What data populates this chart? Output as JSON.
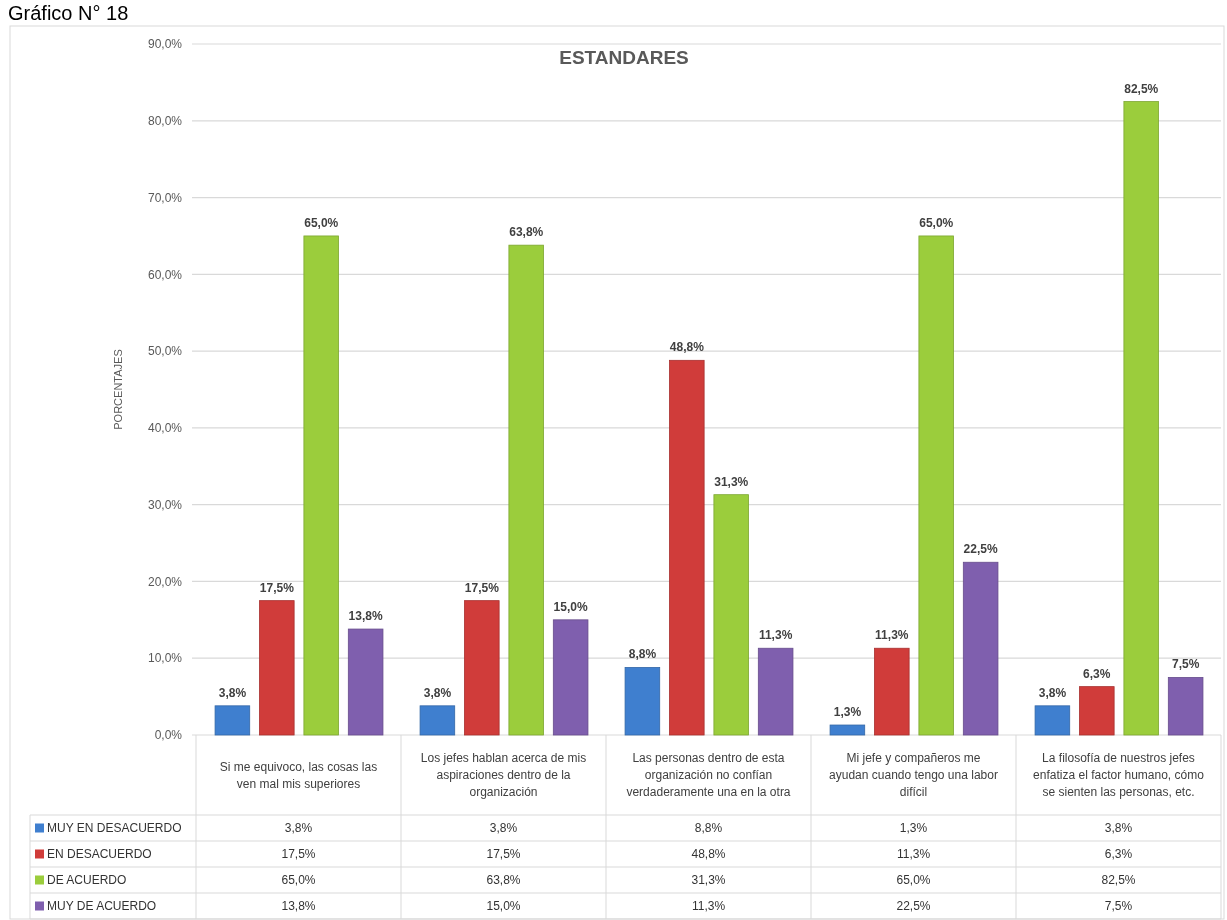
{
  "chart_data": {
    "type": "bar",
    "title": "ESTANDARES",
    "annotations": [
      "Gráfico N° 18"
    ],
    "ylabel": "PORCENTAJES",
    "categories": [
      "Si me equivoco, las cosas las ven mal mis superiores",
      "Los jefes hablan acerca de mis aspiraciones dentro de la organización",
      "Las personas dentro de esta organización no confían verdaderamente una en la otra",
      "Mi jefe y compañeros me ayudan cuando tengo una labor difícil",
      "La filosofía de nuestros jefes enfatiza el factor humano, cómo se sienten las personas, etc."
    ],
    "series": [
      {
        "name": "MUY EN DESACUERDO",
        "color": "#3f7fcf",
        "values": [
          3.8,
          3.8,
          8.8,
          1.3,
          3.8
        ],
        "value_labels": [
          "3,8%",
          "3,8%",
          "8,8%",
          "1,3%",
          "3,8%"
        ]
      },
      {
        "name": "EN DESACUERDO",
        "color": "#d03c3a",
        "values": [
          17.5,
          17.5,
          48.8,
          11.3,
          6.3
        ],
        "value_labels": [
          "17,5%",
          "17,5%",
          "48,8%",
          "11,3%",
          "6,3%"
        ]
      },
      {
        "name": "DE ACUERDO",
        "color": "#9bcd3c",
        "values": [
          65.0,
          63.8,
          31.3,
          65.0,
          82.5
        ],
        "value_labels": [
          "65,0%",
          "63,8%",
          "31,3%",
          "65,0%",
          "82,5%"
        ]
      },
      {
        "name": "MUY DE ACUERDO",
        "color": "#7f5fae",
        "values": [
          13.8,
          15.0,
          11.3,
          22.5,
          7.5
        ],
        "value_labels": [
          "13,8%",
          "15,0%",
          "11,3%",
          "22,5%",
          "7,5%"
        ]
      }
    ],
    "ylim": [
      0,
      90
    ],
    "yticks": [
      {
        "value": 0,
        "label": "0,0%"
      },
      {
        "value": 10,
        "label": "10,0%"
      },
      {
        "value": 20,
        "label": "20,0%"
      },
      {
        "value": 30,
        "label": "30,0%"
      },
      {
        "value": 40,
        "label": "40,0%"
      },
      {
        "value": 50,
        "label": "50,0%"
      },
      {
        "value": 60,
        "label": "60,0%"
      },
      {
        "value": 70,
        "label": "70,0%"
      },
      {
        "value": 80,
        "label": "80,0%"
      },
      {
        "value": 90,
        "label": "90,0%"
      }
    ],
    "grid": "y",
    "legend": "bottom"
  }
}
